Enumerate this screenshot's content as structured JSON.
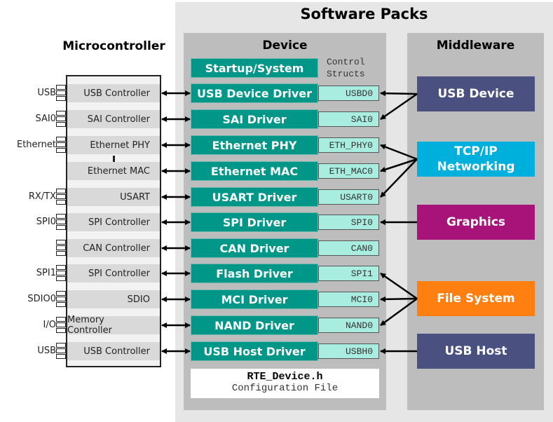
{
  "software_packs": {
    "title": "Software Packs"
  },
  "microcontroller": {
    "title": "Microcontroller",
    "rows": [
      {
        "controller": "USB  Controller",
        "pin": "USB"
      },
      {
        "controller": "SAI Controller",
        "pin": "SAI0"
      },
      {
        "controller": "Ethernet  PHY",
        "pin": "Ethernet"
      },
      {
        "controller": "Ethernet  MAC",
        "pin": ""
      },
      {
        "controller": "USART",
        "pin": "RX/TX"
      },
      {
        "controller": "SPI Controller",
        "pin": "SPI0"
      },
      {
        "controller": "CAN Controller",
        "pin": ""
      },
      {
        "controller": "SPI Controller",
        "pin": "SPI1"
      },
      {
        "controller": "SDIO",
        "pin": "SDIO0"
      },
      {
        "controller": "Memory Controller",
        "pin": "I/O"
      },
      {
        "controller": "USB  Controller",
        "pin": "USB"
      }
    ]
  },
  "device": {
    "title": "Device",
    "startup": "Startup/System",
    "control_structs": "Control\nStructs",
    "drivers": [
      {
        "name": "USB Device Driver",
        "struct": "USBD0"
      },
      {
        "name": "SAI Driver",
        "struct": "SAI0"
      },
      {
        "name": "Ethernet PHY",
        "struct": "ETH_PHY0"
      },
      {
        "name": "Ethernet MAC",
        "struct": "ETH_MAC0"
      },
      {
        "name": "USART Driver",
        "struct": "USART0"
      },
      {
        "name": "SPI Driver",
        "struct": "SPI0"
      },
      {
        "name": "CAN Driver",
        "struct": "CAN0"
      },
      {
        "name": "Flash Driver",
        "struct": "SPI1"
      },
      {
        "name": "MCI Driver",
        "struct": "MCI0"
      },
      {
        "name": "NAND Driver",
        "struct": "NAND0"
      },
      {
        "name": "USB Host Driver",
        "struct": "USBH0"
      }
    ],
    "config": {
      "file": "RTE_Device.h",
      "label": "Configuration File"
    }
  },
  "middleware": {
    "title": "Middleware",
    "items": [
      {
        "name": "USB Device",
        "color": "#4a5080"
      },
      {
        "name": "TCP/IP\nNetworking",
        "color": "#00b0dc"
      },
      {
        "name": "Graphics",
        "color": "#a8137a"
      },
      {
        "name": "File System",
        "color": "#ff8010"
      },
      {
        "name": "USB Host",
        "color": "#4a5080"
      }
    ]
  },
  "colors": {
    "driver": "#009688",
    "struct": "#a8ede0",
    "panel": "#bdbdbd",
    "outer": "#e6e6e6"
  }
}
